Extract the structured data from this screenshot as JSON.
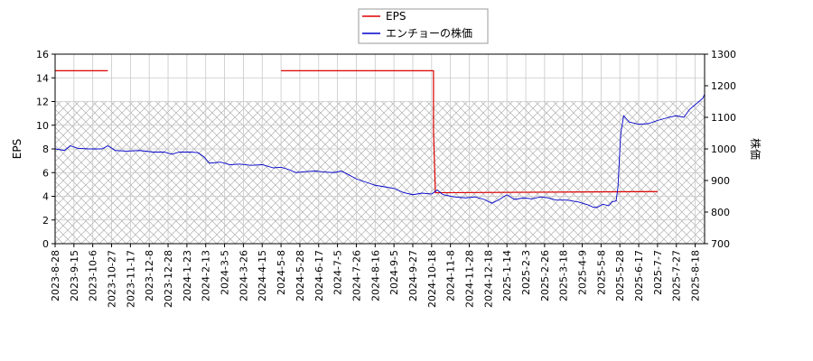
{
  "chart_data": {
    "type": "line",
    "grid": true,
    "legend_position": "top-center",
    "hatch": {
      "y_range_left": [
        0,
        12
      ],
      "color": "#aaaaaa"
    },
    "x_tick_labels": [
      "2023-8-28",
      "2023-9-15",
      "2023-10-6",
      "2023-10-27",
      "2023-11-17",
      "2023-12-8",
      "2023-12-28",
      "2024-1-23",
      "2024-2-13",
      "2024-3-5",
      "2024-3-26",
      "2024-4-15",
      "2024-5-8",
      "2024-5-28",
      "2024-6-17",
      "2024-7-5",
      "2024-7-26",
      "2024-8-16",
      "2024-9-5",
      "2024-9-27",
      "2024-10-18",
      "2024-11-8",
      "2024-11-28",
      "2024-12-18",
      "2025-1-14",
      "2025-2-3",
      "2025-2-26",
      "2025-3-18",
      "2025-4-9",
      "2025-5-8",
      "2025-5-28",
      "2025-6-17",
      "2025-7-7",
      "2025-7-27",
      "2025-8-18"
    ],
    "y_left": {
      "label": "EPS",
      "ylim": [
        0,
        16
      ],
      "ticks": [
        0,
        2,
        4,
        6,
        8,
        10,
        12,
        14,
        16
      ]
    },
    "y_right": {
      "label": "株価",
      "ylim": [
        700,
        1300
      ],
      "ticks": [
        700,
        800,
        900,
        1000,
        1100,
        1200,
        1300
      ]
    },
    "series": [
      {
        "name": "EPS",
        "axis": "left",
        "color": "#dd0000",
        "segments": [
          [
            [
              0,
              14.6
            ],
            [
              2.8,
              14.6
            ]
          ],
          [
            [
              12.0,
              14.6
            ],
            [
              20.1,
              14.6
            ],
            [
              20.1,
              9.5
            ],
            [
              20.2,
              4.3
            ],
            [
              32.0,
              4.4
            ]
          ]
        ]
      },
      {
        "name": "エンチョーの株価",
        "axis": "right",
        "color": "#0000cc",
        "points": [
          [
            0,
            1000
          ],
          [
            0.5,
            995
          ],
          [
            0.8,
            1010
          ],
          [
            1.2,
            1002
          ],
          [
            1.8,
            1000
          ],
          [
            2.5,
            1000
          ],
          [
            2.8,
            1010
          ],
          [
            3.2,
            995
          ],
          [
            3.8,
            993
          ],
          [
            4.5,
            995
          ],
          [
            5.2,
            990
          ],
          [
            5.8,
            990
          ],
          [
            6.2,
            983
          ],
          [
            6.6,
            990
          ],
          [
            7.2,
            990
          ],
          [
            7.6,
            988
          ],
          [
            7.9,
            975
          ],
          [
            8.2,
            955
          ],
          [
            8.8,
            958
          ],
          [
            9.3,
            950
          ],
          [
            9.8,
            952
          ],
          [
            10.4,
            948
          ],
          [
            11.0,
            950
          ],
          [
            11.6,
            940
          ],
          [
            12.0,
            942
          ],
          [
            12.4,
            935
          ],
          [
            12.8,
            925
          ],
          [
            13.3,
            928
          ],
          [
            13.8,
            930
          ],
          [
            14.3,
            927
          ],
          [
            14.8,
            925
          ],
          [
            15.2,
            930
          ],
          [
            15.6,
            918
          ],
          [
            16.0,
            905
          ],
          [
            16.5,
            895
          ],
          [
            17.0,
            885
          ],
          [
            17.5,
            880
          ],
          [
            18.0,
            875
          ],
          [
            18.5,
            862
          ],
          [
            19.0,
            855
          ],
          [
            19.5,
            860
          ],
          [
            20.0,
            857
          ],
          [
            20.3,
            870
          ],
          [
            20.6,
            855
          ],
          [
            21.2,
            848
          ],
          [
            21.8,
            845
          ],
          [
            22.3,
            848
          ],
          [
            22.8,
            840
          ],
          [
            23.2,
            828
          ],
          [
            23.6,
            840
          ],
          [
            24.0,
            855
          ],
          [
            24.4,
            840
          ],
          [
            24.9,
            845
          ],
          [
            25.3,
            842
          ],
          [
            25.8,
            848
          ],
          [
            26.2,
            845
          ],
          [
            26.6,
            838
          ],
          [
            27.2,
            838
          ],
          [
            27.8,
            832
          ],
          [
            28.3,
            823
          ],
          [
            28.6,
            815
          ],
          [
            28.8,
            815
          ],
          [
            29.1,
            825
          ],
          [
            29.4,
            820
          ],
          [
            29.6,
            833
          ],
          [
            29.8,
            835
          ],
          [
            29.9,
            880
          ],
          [
            30.0,
            1000
          ],
          [
            30.05,
            1050
          ],
          [
            30.2,
            1105
          ],
          [
            30.5,
            1085
          ],
          [
            31.0,
            1078
          ],
          [
            31.5,
            1080
          ],
          [
            32.0,
            1090
          ],
          [
            32.6,
            1100
          ],
          [
            33.0,
            1105
          ],
          [
            33.4,
            1100
          ],
          [
            33.7,
            1125
          ],
          [
            34.0,
            1140
          ],
          [
            34.4,
            1160
          ],
          [
            34.7,
            1200
          ],
          [
            35.0,
            1215
          ],
          [
            35.3,
            1225
          ],
          [
            35.6,
            1240
          ],
          [
            35.9,
            1250
          ],
          [
            36.2,
            1255
          ],
          [
            36.5,
            1255
          ]
        ]
      }
    ]
  }
}
